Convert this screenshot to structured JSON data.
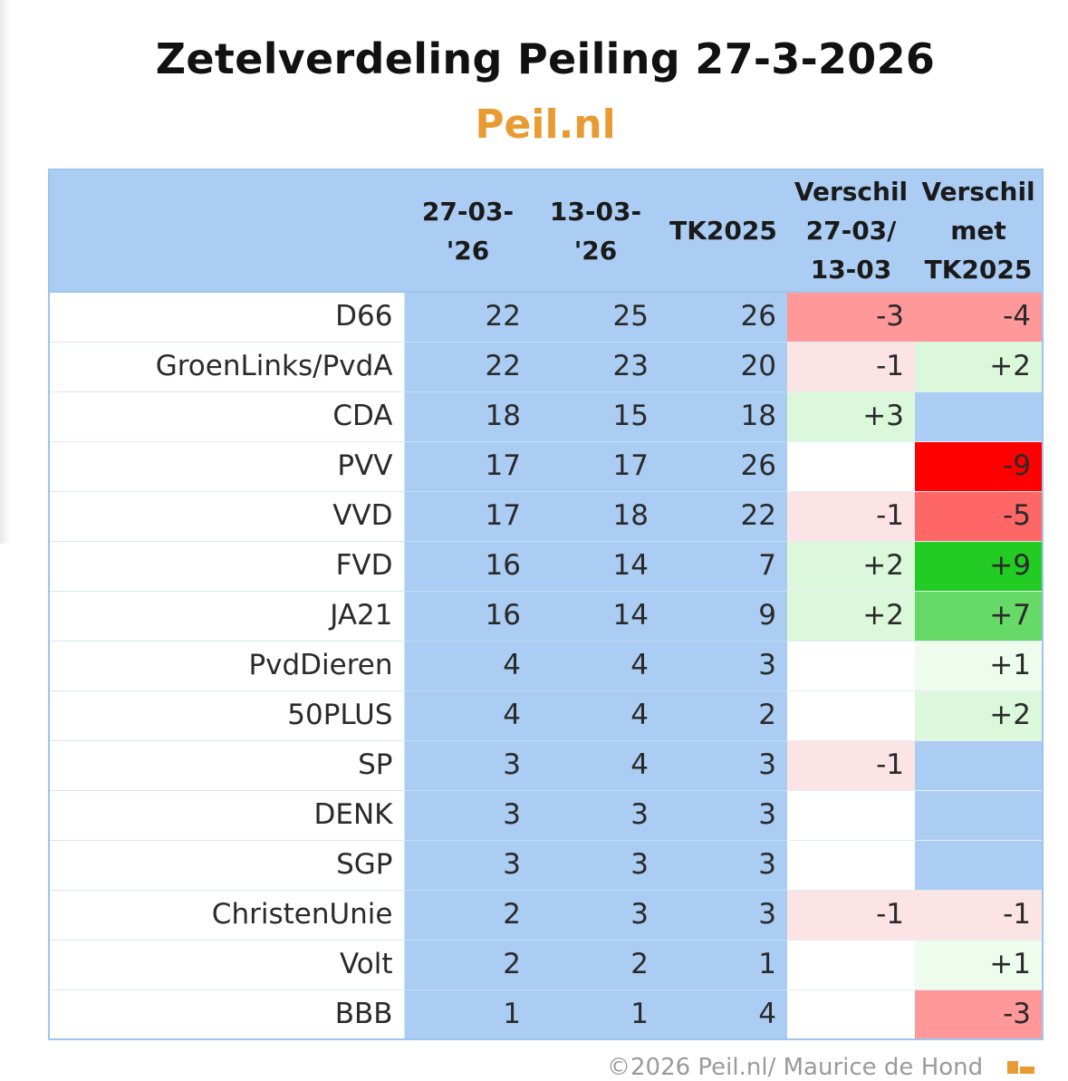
{
  "title": "Zetelverdeling Peiling 27-3-2026",
  "subtitle": "Peil.nl",
  "footer": "©2026 Peil.nl/ Maurice de Hond",
  "colors": {
    "header_bg": "#abcdf3",
    "subtitle": "#e99b33",
    "neg_strong": "#ff0000",
    "neg_mid": "#ff6666",
    "neg_light": "#ff9999",
    "neg_faint": "#fde4e4",
    "pos_strong": "#22cc22",
    "pos_mid": "#66d966",
    "pos_light": "#dbf8db",
    "pos_faint": "#eefcee"
  },
  "chart_data": {
    "type": "table",
    "columns": [
      "",
      "27-03-'26",
      "13-03-'26",
      "TK2025",
      "Verschil 27-03/ 13-03",
      "Verschil met TK2025"
    ],
    "rows": [
      {
        "party": "D66",
        "p1": "22",
        "p2": "25",
        "tk": "26",
        "d1": "-3",
        "d2": "-4"
      },
      {
        "party": "GroenLinks/PvdA",
        "p1": "22",
        "p2": "23",
        "tk": "20",
        "d1": "-1",
        "d2": "+2"
      },
      {
        "party": "CDA",
        "p1": "18",
        "p2": "15",
        "tk": "18",
        "d1": "+3",
        "d2": ""
      },
      {
        "party": "PVV",
        "p1": "17",
        "p2": "17",
        "tk": "26",
        "d1": "",
        "d2": "-9"
      },
      {
        "party": "VVD",
        "p1": "17",
        "p2": "18",
        "tk": "22",
        "d1": "-1",
        "d2": "-5"
      },
      {
        "party": "FVD",
        "p1": "16",
        "p2": "14",
        "tk": "7",
        "d1": "+2",
        "d2": "+9"
      },
      {
        "party": "JA21",
        "p1": "16",
        "p2": "14",
        "tk": "9",
        "d1": "+2",
        "d2": "+7"
      },
      {
        "party": "PvdDieren",
        "p1": "4",
        "p2": "4",
        "tk": "3",
        "d1": "",
        "d2": "+1"
      },
      {
        "party": "50PLUS",
        "p1": "4",
        "p2": "4",
        "tk": "2",
        "d1": "",
        "d2": "+2"
      },
      {
        "party": "SP",
        "p1": "3",
        "p2": "4",
        "tk": "3",
        "d1": "-1",
        "d2": ""
      },
      {
        "party": "DENK",
        "p1": "3",
        "p2": "3",
        "tk": "3",
        "d1": "",
        "d2": ""
      },
      {
        "party": "SGP",
        "p1": "3",
        "p2": "3",
        "tk": "3",
        "d1": "",
        "d2": ""
      },
      {
        "party": "ChristenUnie",
        "p1": "2",
        "p2": "3",
        "tk": "3",
        "d1": "-1",
        "d2": "-1"
      },
      {
        "party": "Volt",
        "p1": "2",
        "p2": "2",
        "tk": "1",
        "d1": "",
        "d2": "+1"
      },
      {
        "party": "BBB",
        "p1": "1",
        "p2": "1",
        "tk": "4",
        "d1": "",
        "d2": "-3"
      }
    ]
  }
}
